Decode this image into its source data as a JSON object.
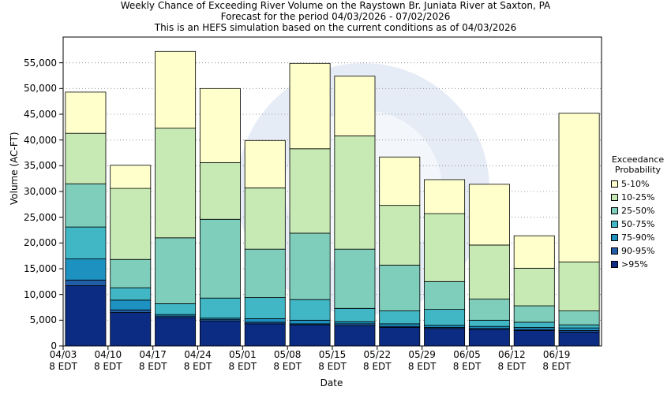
{
  "title": {
    "line1": "Weekly Chance of Exceeding River Volume on the Raystown Br. Juniata River at Saxton, PA",
    "line2": "Forecast for the period 04/03/2026 - 07/02/2026",
    "line3": "This is an HEFS simulation based on the current conditions as of 04/03/2026"
  },
  "chart_data": {
    "type": "bar",
    "stacked": true,
    "ylabel": "Volume (AC-FT)",
    "xlabel": "Date",
    "ylim": [
      0,
      60000
    ],
    "yticks": [
      0,
      5000,
      10000,
      15000,
      20000,
      25000,
      30000,
      35000,
      40000,
      45000,
      50000,
      55000
    ],
    "ytick_labels": [
      "0",
      "5,000",
      "10,000",
      "15,000",
      "20,000",
      "25,000",
      "30,000",
      "35,000",
      "40,000",
      "45,000",
      "50,000",
      "55,000"
    ],
    "categories": [
      "04/03 8 EDT",
      "04/10 8 EDT",
      "04/17 8 EDT",
      "04/24 8 EDT",
      "05/01 8 EDT",
      "05/08 8 EDT",
      "05/15 8 EDT",
      "05/22 8 EDT",
      "05/29 8 EDT",
      "06/05 8 EDT",
      "06/12 8 EDT",
      "06/19 8 EDT"
    ],
    "xtick_labels": [
      {
        "date": "04/03",
        "time": "8 EDT"
      },
      {
        "date": "04/10",
        "time": "8 EDT"
      },
      {
        "date": "04/17",
        "time": "8 EDT"
      },
      {
        "date": "04/24",
        "time": "8 EDT"
      },
      {
        "date": "05/01",
        "time": "8 EDT"
      },
      {
        "date": "05/08",
        "time": "8 EDT"
      },
      {
        "date": "05/15",
        "time": "8 EDT"
      },
      {
        "date": "05/22",
        "time": "8 EDT"
      },
      {
        "date": "05/29",
        "time": "8 EDT"
      },
      {
        "date": "06/05",
        "time": "8 EDT"
      },
      {
        "date": "06/12",
        "time": "8 EDT"
      },
      {
        "date": "06/19",
        "time": "8 EDT"
      }
    ],
    "legend_title": "Exceedance Probability",
    "legend_position": "right",
    "series": [
      {
        "name": ">95%",
        "color": "#0c2c84",
        "tops": [
          11700,
          6500,
          5500,
          4800,
          4300,
          4100,
          3900,
          3600,
          3400,
          3200,
          3000,
          2700
        ]
      },
      {
        "name": "90-95%",
        "color": "#225ea8",
        "tops": [
          12800,
          7000,
          5800,
          5100,
          4600,
          4300,
          4300,
          3800,
          3600,
          3400,
          3200,
          3000
        ]
      },
      {
        "name": "75-90%",
        "color": "#1d91c0",
        "tops": [
          16900,
          8900,
          6100,
          5400,
          5300,
          5000,
          4700,
          4300,
          4000,
          3800,
          3600,
          3500
        ]
      },
      {
        "name": "50-75%",
        "color": "#41b6c4",
        "tops": [
          23100,
          11300,
          8200,
          9300,
          9400,
          9000,
          7300,
          6800,
          7100,
          5000,
          4600,
          4100
        ]
      },
      {
        "name": "25-50%",
        "color": "#7fcdbb",
        "tops": [
          31500,
          16800,
          21000,
          24600,
          18800,
          21900,
          18800,
          15700,
          12500,
          9100,
          7800,
          6800
        ]
      },
      {
        "name": "10-25%",
        "color": "#c7e9b4",
        "tops": [
          41300,
          30600,
          42300,
          35600,
          30700,
          38300,
          40800,
          27300,
          25700,
          19600,
          15100,
          16300
        ]
      },
      {
        "name": "5-10%",
        "color": "#ffffcc",
        "tops": [
          49300,
          35100,
          57200,
          50000,
          39900,
          54900,
          52400,
          36700,
          32300,
          31400,
          21400,
          45200
        ]
      }
    ],
    "grid": "horizontal dotted"
  },
  "legend": {
    "title_line1": "Exceedance",
    "title_line2": "Probability",
    "items": [
      {
        "label": "5-10%",
        "color": "#ffffcc"
      },
      {
        "label": "10-25%",
        "color": "#c7e9b4"
      },
      {
        "label": "25-50%",
        "color": "#7fcdbb"
      },
      {
        "label": "50-75%",
        "color": "#41b6c4"
      },
      {
        "label": "75-90%",
        "color": "#1d91c0"
      },
      {
        "label": "90-95%",
        "color": "#225ea8"
      },
      {
        "label": ">95%",
        "color": "#0c2c84"
      }
    ]
  }
}
